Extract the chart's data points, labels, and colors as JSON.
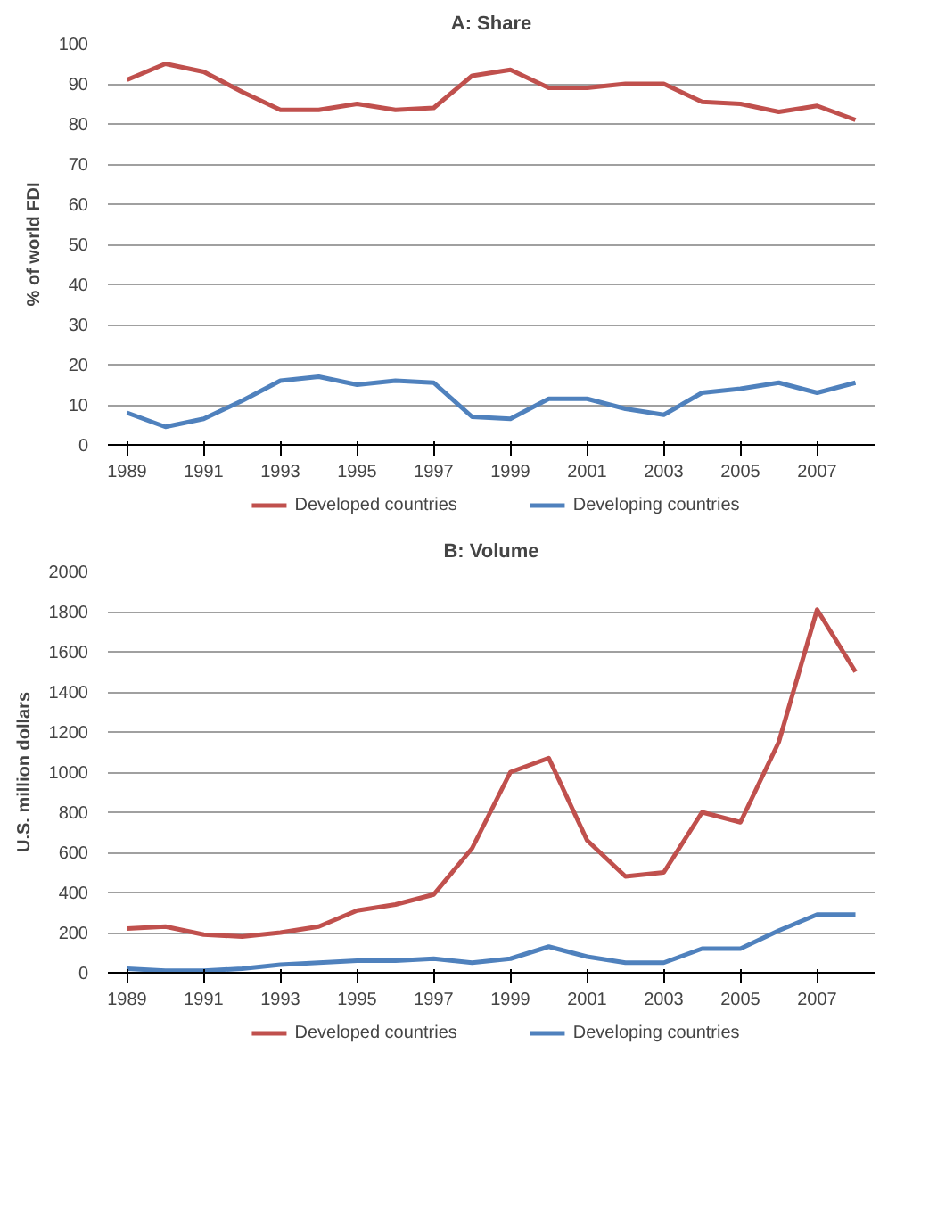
{
  "chart_data": [
    {
      "type": "line",
      "title": "A: Share",
      "ylabel": "% of world FDI",
      "categories": [
        "1989",
        null,
        "1991",
        null,
        "1993",
        null,
        "1995",
        null,
        "1997",
        null,
        "1999",
        null,
        "2001",
        null,
        "2003",
        null,
        "2005",
        null,
        "2007",
        null
      ],
      "ylim": [
        0,
        100
      ],
      "yticks": [
        0,
        10,
        20,
        30,
        40,
        50,
        60,
        70,
        80,
        90,
        100
      ],
      "grid": "y",
      "legend": "bottom",
      "series": [
        {
          "name": "Developed countries",
          "color": "#c0504d",
          "values": [
            91,
            95,
            93,
            88,
            83.5,
            83.5,
            85,
            83.5,
            84,
            92,
            93.5,
            89,
            89,
            90,
            90,
            85.5,
            85,
            83,
            84.5,
            81
          ]
        },
        {
          "name": "Developing countries",
          "color": "#4f81bd",
          "values": [
            8,
            4.5,
            6.5,
            11,
            16,
            17,
            15,
            16,
            15.5,
            7,
            6.5,
            11.5,
            11.5,
            9,
            7.5,
            13,
            14,
            15.5,
            13,
            15.5
          ]
        }
      ]
    },
    {
      "type": "line",
      "title": "B: Volume",
      "ylabel": "U.S. million dollars",
      "categories": [
        "1989",
        null,
        "1991",
        null,
        "1993",
        null,
        "1995",
        null,
        "1997",
        null,
        "1999",
        null,
        "2001",
        null,
        "2003",
        null,
        "2005",
        null,
        "2007",
        null
      ],
      "ylim": [
        0,
        2000
      ],
      "yticks": [
        0,
        200,
        400,
        600,
        800,
        1000,
        1200,
        1400,
        1600,
        1800,
        2000
      ],
      "grid": "y",
      "legend": "bottom",
      "series": [
        {
          "name": "Developed countries",
          "color": "#c0504d",
          "values": [
            220,
            230,
            190,
            180,
            200,
            230,
            310,
            340,
            390,
            620,
            1000,
            1070,
            660,
            480,
            500,
            800,
            750,
            1150,
            1810,
            1500
          ]
        },
        {
          "name": "Developing countries",
          "color": "#4f81bd",
          "values": [
            20,
            10,
            10,
            20,
            40,
            50,
            60,
            60,
            70,
            50,
            70,
            130,
            80,
            50,
            50,
            120,
            120,
            210,
            290,
            290
          ]
        }
      ]
    }
  ]
}
